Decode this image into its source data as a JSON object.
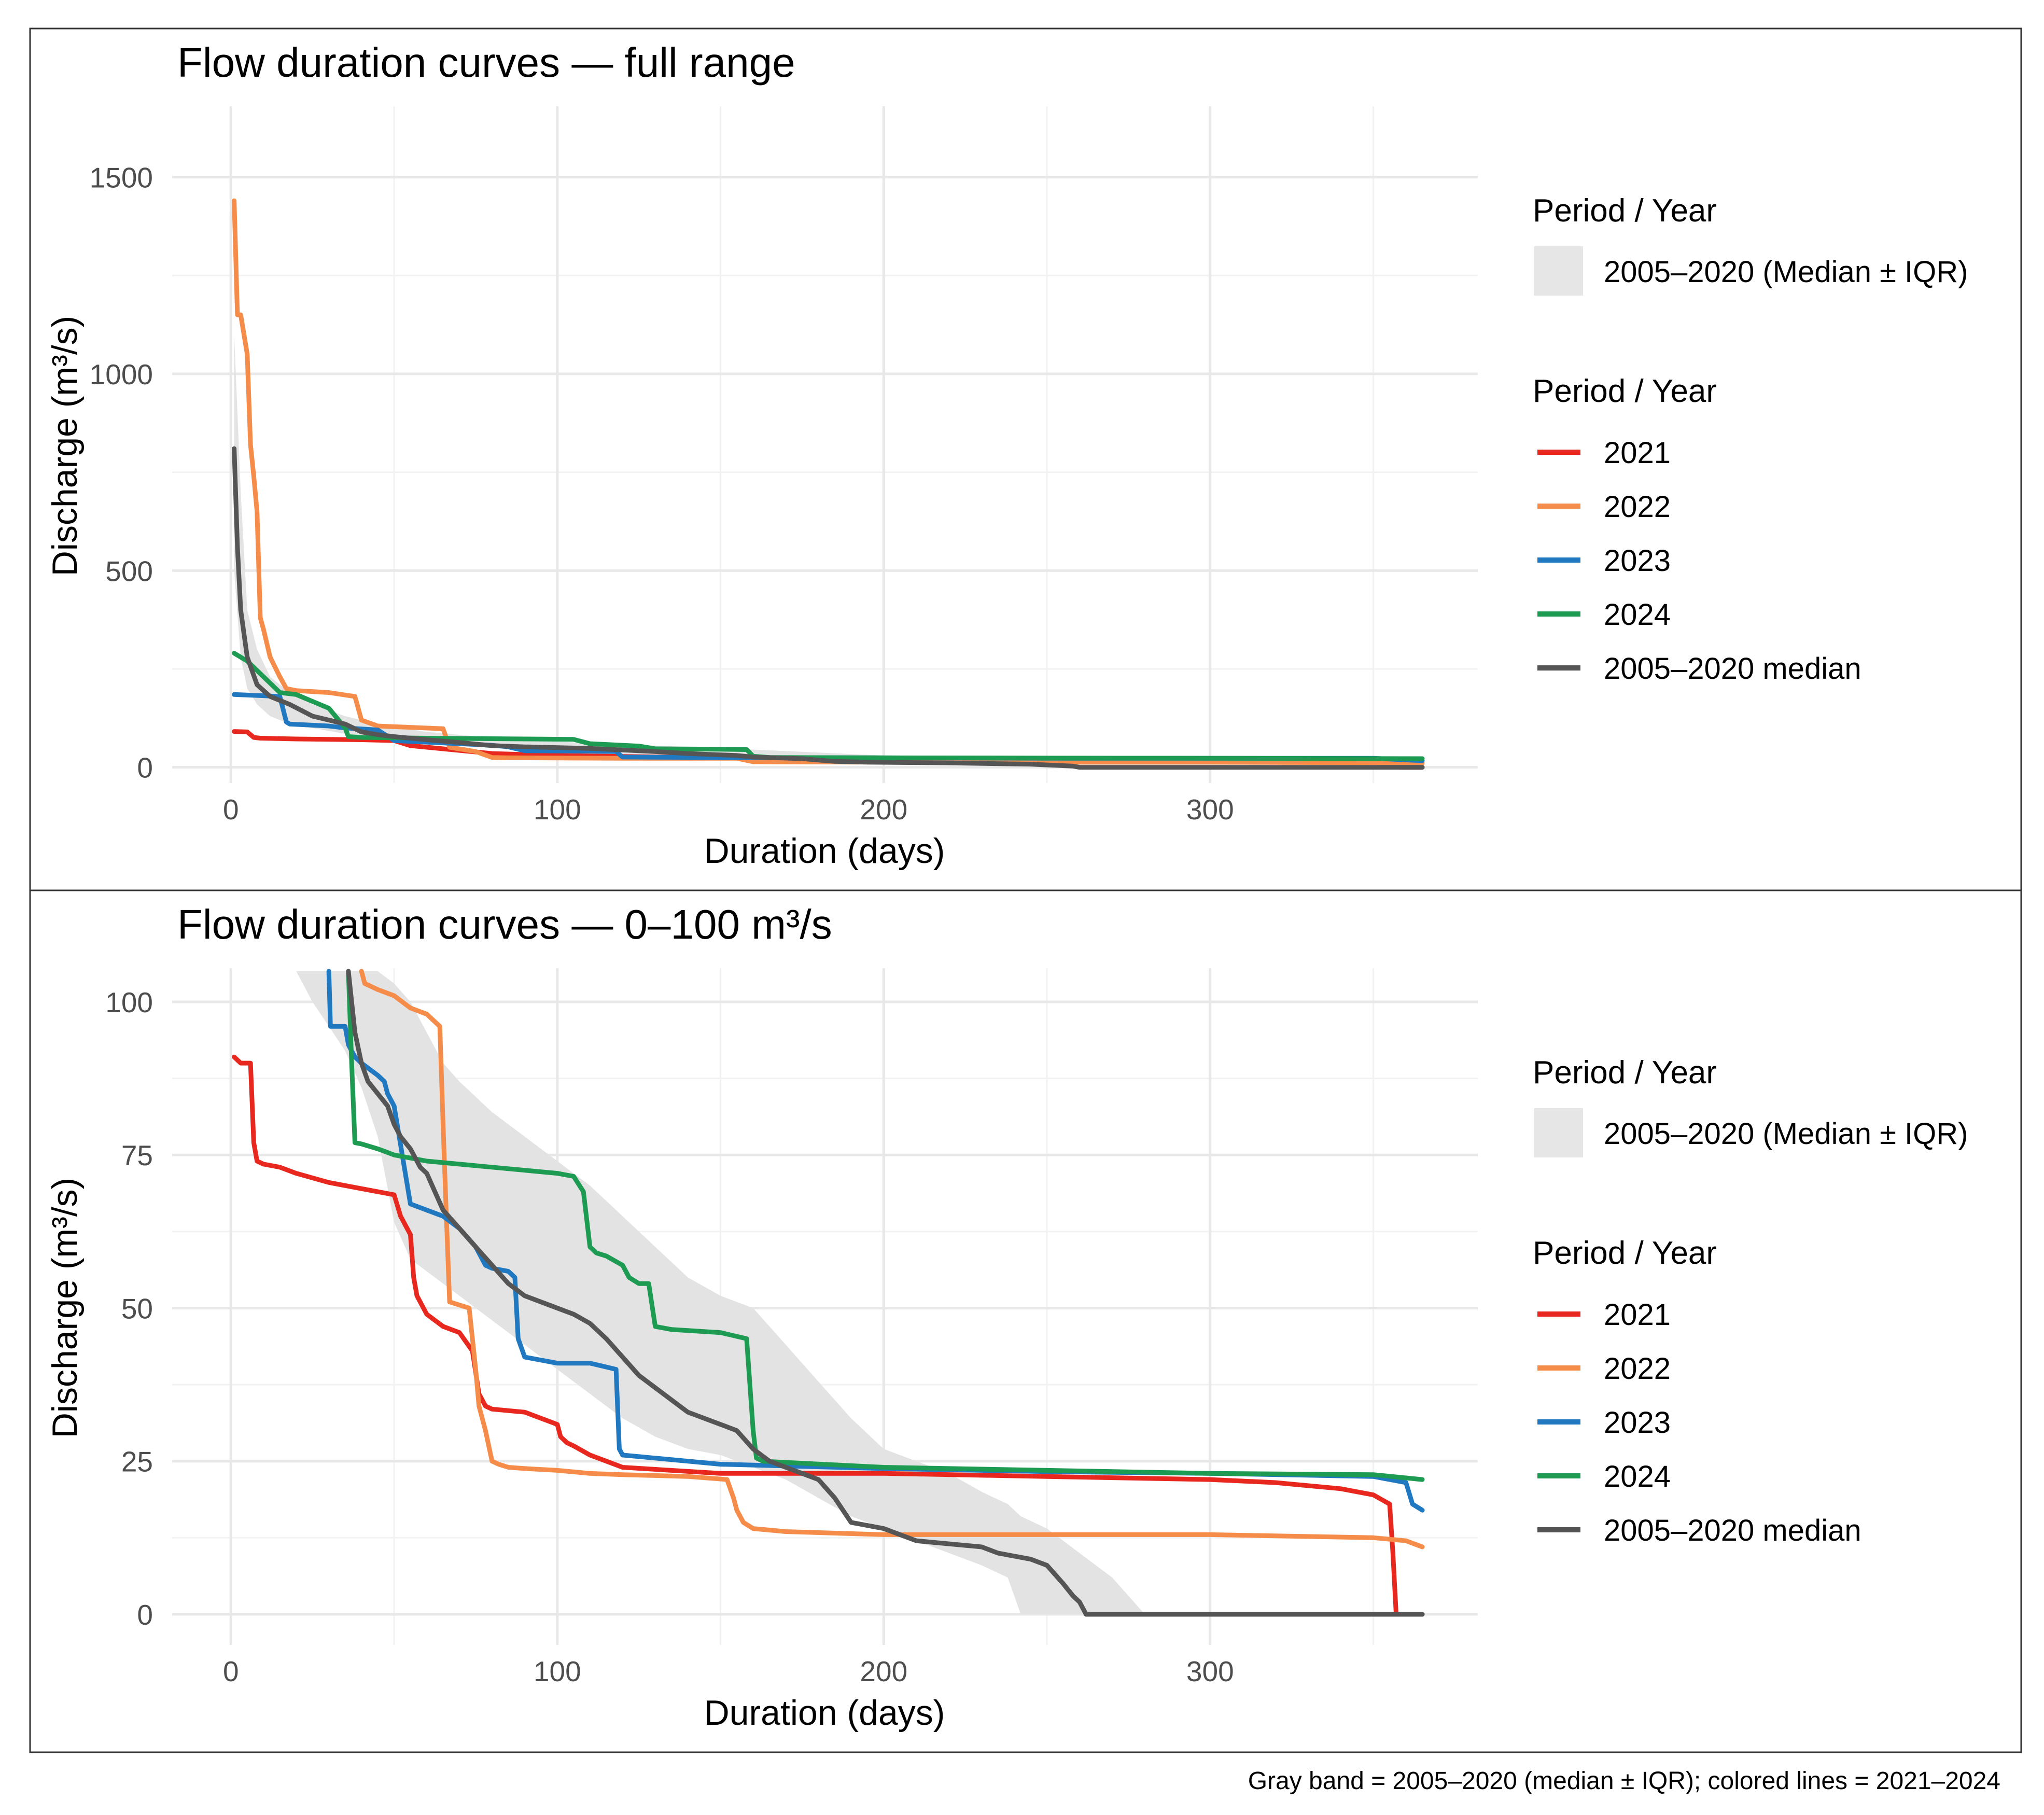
{
  "chart_data": [
    {
      "type": "line",
      "title": "Flow duration curves — full range",
      "xlabel": "Duration (days)",
      "ylabel": "Discharge (m³/s)",
      "xlim": [
        -18,
        382
      ],
      "ylim": [
        -40,
        1680
      ],
      "xticks": [
        0,
        100,
        200,
        300
      ],
      "yticks": [
        0,
        500,
        1000,
        1500
      ],
      "xminor": [
        50,
        150,
        250,
        350
      ],
      "yminor": [
        250,
        750,
        1250
      ],
      "legend": {
        "band_title": "Period / Year",
        "band_label": "2005–2020 (Median ± IQR)",
        "lines_title": "Period / Year",
        "labels": [
          "2021",
          "2022",
          "2023",
          "2024",
          "2005–2020 median"
        ]
      },
      "band": {
        "name": "2005–2020 (Median ± IQR)",
        "x": [
          1,
          3,
          5,
          8,
          12,
          18,
          25,
          35,
          45,
          60,
          80,
          100,
          130,
          160,
          200,
          250,
          280,
          365
        ],
        "lower": [
          500,
          280,
          200,
          160,
          130,
          110,
          100,
          85,
          70,
          60,
          50,
          40,
          30,
          25,
          15,
          5,
          0,
          0
        ],
        "upper": [
          1100,
          700,
          400,
          300,
          230,
          190,
          160,
          130,
          110,
          90,
          75,
          65,
          55,
          45,
          30,
          20,
          10,
          0
        ]
      },
      "series": [
        {
          "name": "2021",
          "color": "#E8281E",
          "x": [
            1,
            5,
            7,
            9,
            20,
            40,
            50,
            55,
            65,
            80,
            100,
            150,
            200,
            300,
            355,
            358,
            360,
            365
          ],
          "values": [
            91,
            90,
            76,
            74,
            72,
            70,
            68,
            55,
            47,
            35,
            30,
            24,
            23,
            22,
            20,
            0,
            0,
            0
          ]
        },
        {
          "name": "2022",
          "color": "#F58C4A",
          "x": [
            1,
            2,
            3,
            5,
            6,
            7,
            8,
            9,
            10,
            12,
            15,
            17,
            20,
            30,
            38,
            40,
            45,
            65,
            67,
            75,
            80,
            85,
            120,
            155,
            160,
            200,
            300,
            365
          ],
          "values": [
            1440,
            1150,
            1150,
            1050,
            820,
            740,
            650,
            380,
            350,
            280,
            230,
            200,
            195,
            190,
            180,
            120,
            105,
            98,
            51,
            40,
            25,
            24,
            23,
            23,
            14,
            13,
            13,
            11
          ]
        },
        {
          "name": "2023",
          "color": "#1F78C0",
          "x": [
            1,
            10,
            15,
            17,
            18,
            30,
            35,
            45,
            50,
            65,
            80,
            85,
            90,
            110,
            118,
            120,
            150,
            200,
            250,
            350,
            362,
            365
          ],
          "values": [
            185,
            182,
            180,
            115,
            110,
            105,
            100,
            95,
            68,
            62,
            56,
            52,
            42,
            41,
            40,
            26,
            25,
            24,
            23,
            23,
            18,
            17
          ]
        },
        {
          "name": "2024",
          "color": "#1E9B52",
          "x": [
            1,
            5,
            10,
            15,
            20,
            30,
            35,
            36,
            40,
            60,
            90,
            105,
            110,
            115,
            125,
            130,
            150,
            158,
            160,
            165,
            200,
            300,
            365
          ],
          "values": [
            290,
            270,
            230,
            190,
            185,
            150,
            100,
            78,
            76,
            74,
            72,
            71,
            60,
            58,
            54,
            47,
            46,
            45,
            28,
            25,
            24,
            23,
            22
          ]
        },
        {
          "name": "2005–2020 median",
          "color": "#555555",
          "x": [
            1,
            2,
            3,
            5,
            8,
            12,
            18,
            25,
            35,
            40,
            45,
            50,
            55,
            60,
            70,
            80,
            90,
            110,
            130,
            140,
            155,
            160,
            175,
            185,
            195,
            220,
            245,
            258,
            260,
            280,
            365
          ],
          "values": [
            810,
            560,
            400,
            280,
            210,
            180,
            160,
            130,
            110,
            90,
            83,
            78,
            74,
            70,
            63,
            55,
            52,
            48,
            40,
            35,
            30,
            26,
            22,
            15,
            13,
            11,
            8,
            3,
            0,
            0,
            0
          ]
        }
      ]
    },
    {
      "type": "line",
      "title": "Flow duration curves — 0–100 m³/s",
      "xlabel": "Duration (days)",
      "ylabel": "Discharge (m³/s)",
      "xlim": [
        -18,
        382
      ],
      "ylim": [
        -5,
        105.5
      ],
      "xticks": [
        0,
        100,
        200,
        300
      ],
      "yticks": [
        0,
        25,
        50,
        75,
        100
      ],
      "xminor": [
        50,
        150,
        250,
        350
      ],
      "yminor": [
        12.5,
        37.5,
        62.5,
        87.5
      ],
      "legend": {
        "band_title": "Period / Year",
        "band_label": "2005–2020 (Median ± IQR)",
        "lines_title": "Period / Year",
        "labels": [
          "2021",
          "2022",
          "2023",
          "2024",
          "2005–2020 median"
        ]
      },
      "band": {
        "name": "2005–2020 (Median ± IQR)",
        "x": [
          20,
          25,
          30,
          35,
          40,
          45,
          50,
          55,
          60,
          65,
          70,
          80,
          90,
          100,
          110,
          120,
          130,
          140,
          150,
          160,
          170,
          180,
          190,
          200,
          210,
          220,
          230,
          238,
          242,
          250,
          260,
          270,
          275,
          280
        ],
        "lower": [
          105,
          100,
          96,
          92,
          86,
          78,
          64,
          58,
          56,
          54,
          52,
          48,
          44,
          40,
          36,
          32,
          29,
          27,
          26,
          24,
          22,
          19,
          16,
          14,
          12,
          10,
          8,
          6,
          0,
          0,
          0,
          0,
          0,
          0
        ],
        "upper": [
          105,
          105,
          105,
          105,
          105,
          105,
          103,
          100,
          95,
          90,
          87,
          82,
          78,
          74,
          70,
          65,
          60,
          55,
          52,
          50,
          44,
          38,
          32,
          27,
          25,
          23,
          20,
          18,
          16,
          14,
          10,
          6,
          3,
          0
        ]
      },
      "series": [
        {
          "name": "2021",
          "color": "#E8281E",
          "x": [
            1,
            3,
            6,
            7,
            8,
            10,
            15,
            20,
            30,
            40,
            45,
            50,
            52,
            55,
            56,
            57,
            60,
            65,
            70,
            74,
            76,
            78,
            80,
            90,
            100,
            101,
            103,
            105,
            110,
            120,
            150,
            200,
            300,
            320,
            340,
            350,
            355,
            356,
            357,
            358,
            365
          ],
          "values": [
            91,
            90,
            90,
            77,
            74,
            73.5,
            73,
            72,
            70.5,
            69.5,
            69,
            68.5,
            65,
            62,
            55,
            52,
            49,
            47,
            46,
            43,
            36,
            34,
            33.5,
            33,
            31,
            29,
            28,
            27.5,
            26,
            24,
            23,
            23,
            22,
            21.5,
            20.5,
            19.5,
            18,
            10,
            0,
            0,
            0
          ]
        },
        {
          "name": "2022",
          "color": "#F58C4A",
          "x": [
            40,
            41,
            45,
            50,
            55,
            60,
            64,
            65,
            66,
            67,
            73,
            74,
            75,
            76,
            78,
            80,
            82,
            85,
            90,
            100,
            110,
            120,
            140,
            152,
            154,
            155,
            157,
            160,
            170,
            200,
            250,
            300,
            350,
            360,
            365
          ],
          "values": [
            105,
            103,
            102,
            101,
            99,
            98,
            96,
            80,
            65,
            51,
            50,
            45,
            40,
            34,
            30,
            25,
            24.5,
            24,
            23.8,
            23.5,
            23,
            22.8,
            22.5,
            22,
            19,
            17,
            15,
            14,
            13.5,
            13,
            13,
            13,
            12.5,
            12,
            11
          ]
        },
        {
          "name": "2023",
          "color": "#1F78C0",
          "x": [
            30,
            30.5,
            35,
            36,
            38,
            40,
            45,
            47,
            48,
            50,
            55,
            60,
            65,
            70,
            75,
            78,
            80,
            85,
            87,
            88,
            90,
            100,
            110,
            118,
            119,
            120,
            130,
            150,
            200,
            250,
            300,
            350,
            360,
            362,
            365
          ],
          "values": [
            105,
            96,
            96,
            93,
            91,
            90,
            88,
            87,
            85,
            83,
            67,
            66,
            65,
            63,
            60,
            57,
            56.5,
            56,
            55,
            45,
            42,
            41,
            41,
            40,
            27,
            26,
            25.5,
            24.5,
            23.8,
            23.3,
            23,
            22.5,
            21.5,
            18,
            17
          ]
        },
        {
          "name": "2024",
          "color": "#1E9B52",
          "x": [
            36,
            37,
            38,
            40,
            45,
            50,
            55,
            60,
            70,
            80,
            90,
            100,
            105,
            108,
            110,
            112,
            115,
            120,
            122,
            125,
            128,
            130,
            135,
            150,
            158,
            160,
            161,
            163,
            170,
            200,
            250,
            300,
            350,
            365
          ],
          "values": [
            105,
            90,
            77,
            76.8,
            76,
            75,
            74.5,
            74,
            73.5,
            73,
            72.5,
            72,
            71.5,
            69,
            60,
            59,
            58.5,
            57,
            55,
            54,
            54,
            47,
            46.5,
            46,
            45,
            30,
            25.5,
            25,
            24.8,
            24,
            23.5,
            23,
            22.8,
            22
          ]
        },
        {
          "name": "2005–2020 median",
          "color": "#555555",
          "x": [
            36,
            38,
            40,
            42,
            45,
            48,
            50,
            52,
            55,
            58,
            60,
            65,
            70,
            75,
            80,
            85,
            90,
            95,
            100,
            105,
            110,
            115,
            120,
            125,
            130,
            135,
            140,
            150,
            155,
            160,
            165,
            170,
            180,
            185,
            190,
            200,
            210,
            220,
            230,
            235,
            240,
            245,
            250,
            255,
            258,
            260,
            262,
            280,
            300,
            330,
            365
          ],
          "values": [
            105,
            95,
            90,
            87,
            85,
            83,
            80,
            78,
            76,
            73,
            72,
            66,
            63,
            60,
            57,
            54,
            52,
            51,
            50,
            49,
            47.5,
            45,
            42,
            39,
            37,
            35,
            33,
            31,
            30,
            27,
            25,
            24,
            22,
            19,
            15,
            14,
            12,
            11.5,
            11,
            10,
            9.5,
            9,
            8,
            5,
            3,
            2,
            0,
            0,
            0,
            0,
            0
          ]
        }
      ]
    }
  ],
  "caption": "Gray band = 2005–2020 (median ± IQR); colored lines = 2021–2024"
}
